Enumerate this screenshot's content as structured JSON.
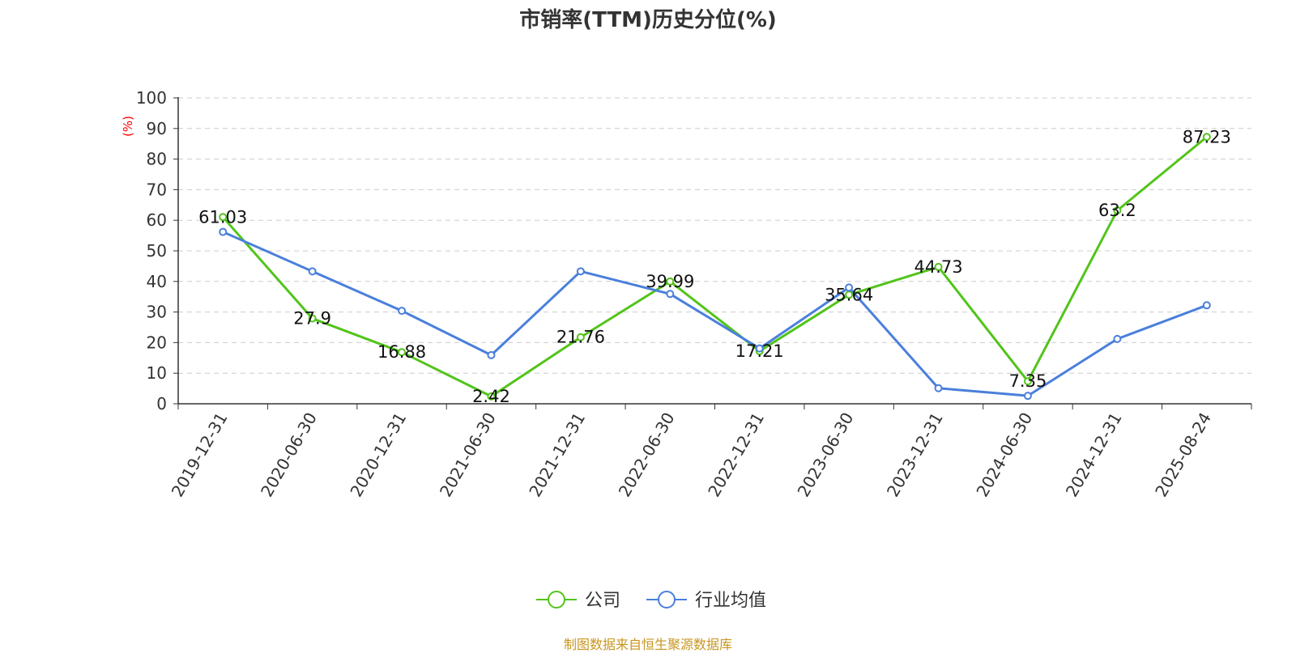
{
  "chart_data": {
    "type": "line",
    "title": "市销率(TTM)历史分位(%)",
    "ylabel": "(%)",
    "xlabel": "",
    "ylim": [
      0,
      100
    ],
    "yticks": [
      0,
      10,
      20,
      30,
      40,
      50,
      60,
      70,
      80,
      90,
      100
    ],
    "grid": true,
    "legend_position": "bottom-center",
    "categories": [
      "2019-12-31",
      "2020-06-30",
      "2020-12-31",
      "2021-06-30",
      "2021-12-31",
      "2022-06-30",
      "2022-12-31",
      "2023-06-30",
      "2023-12-31",
      "2024-06-30",
      "2024-12-31",
      "2025-08-24"
    ],
    "series": [
      {
        "name": "公司",
        "color": "#52c41a",
        "show_labels": true,
        "values": [
          61.03,
          27.9,
          16.88,
          2.42,
          21.76,
          39.99,
          17.21,
          35.64,
          44.73,
          7.35,
          63.2,
          87.23
        ]
      },
      {
        "name": "行业均值",
        "color": "#4a7fdc",
        "show_labels": false,
        "values": [
          56.2,
          43.3,
          30.4,
          15.9,
          43.3,
          35.9,
          18.1,
          38.0,
          5.1,
          2.6,
          21.2,
          32.2
        ]
      }
    ]
  },
  "footer": {
    "source_text": "制图数据来自恒生聚源数据库",
    "color": "#c8961e"
  },
  "colors": {
    "axis": "#333333",
    "grid": "#cccccc",
    "ylabel": "#ff0000"
  }
}
